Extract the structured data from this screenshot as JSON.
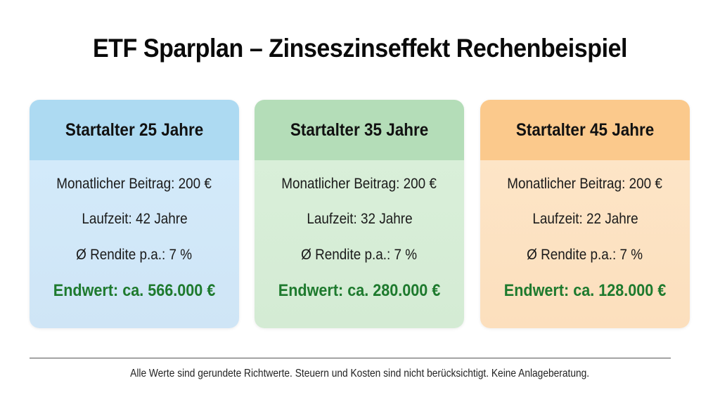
{
  "header": {
    "title": "ETF Sparplan – Zinseszinseffekt Rechenbeispiel"
  },
  "cards": [
    {
      "title": "Startalter 25 Jahre",
      "monthly_contribution": "Monatlicher Beitrag: 200 €",
      "duration": "Laufzeit: 42 Jahre",
      "return": "Ø Rendite p.a.: 7 %",
      "final_value": "Endwert: ca. 566.000 €",
      "header_color": "#addaf2",
      "body_color": "#d3eafa"
    },
    {
      "title": "Startalter 35 Jahre",
      "monthly_contribution": "Monatlicher Beitrag: 200 €",
      "duration": "Laufzeit: 32 Jahre",
      "return": "Ø Rendite p.a.: 7 %",
      "final_value": "Endwert: ca. 280.000 €",
      "header_color": "#b4ddb8",
      "body_color": "#d9efd9"
    },
    {
      "title": "Startalter 45 Jahre",
      "monthly_contribution": "Monatlicher Beitrag: 200 €",
      "duration": "Laufzeit: 22 Jahre",
      "return": "Ø Rendite p.a.: 7 %",
      "final_value": "Endwert: ca. 128.000 €",
      "header_color": "#fbc98c",
      "body_color": "#fde5c7"
    }
  ],
  "accent": {
    "final_value_color": "#1e7a2e"
  },
  "footer": {
    "disclaimer": "Alle Werte sind gerundete Richtwerte. Steuern und Kosten sind nicht berücksichtigt. Keine Anlageberatung."
  }
}
